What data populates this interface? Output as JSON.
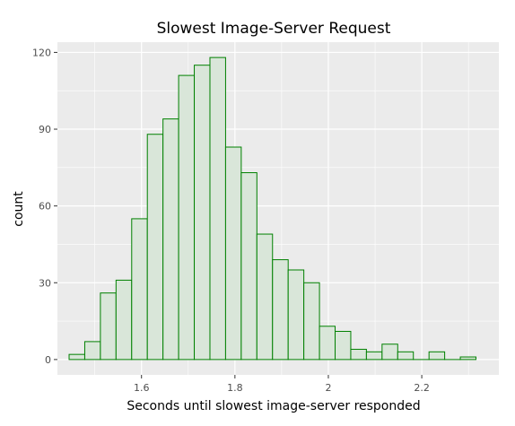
{
  "chart_data": {
    "type": "bar",
    "title": "Slowest Image-Server Request",
    "xlabel": "Seconds until slowest image-server responded",
    "ylabel": "count",
    "bin_width": 0.0335,
    "bin_starts": [
      1.445,
      1.4785,
      1.512,
      1.5455,
      1.579,
      1.6125,
      1.646,
      1.6795,
      1.713,
      1.7465,
      1.78,
      1.8135,
      1.847,
      1.8805,
      1.914,
      1.9475,
      1.981,
      2.0145,
      2.048,
      2.0815,
      2.115,
      2.1485,
      2.182,
      2.2155,
      2.249,
      2.2825,
      2.316
    ],
    "values": [
      2,
      7,
      26,
      31,
      55,
      88,
      94,
      111,
      115,
      118,
      83,
      73,
      49,
      39,
      35,
      30,
      13,
      11,
      4,
      3,
      6,
      3,
      0,
      3,
      0,
      1
    ],
    "xlim": [
      1.42,
      2.365
    ],
    "ylim": [
      -6.0,
      124.0
    ],
    "x_ticks": [
      1.6,
      1.8,
      2.0,
      2.2
    ],
    "x_tick_labels": [
      "1.6",
      "1.8",
      "2",
      "2.2"
    ],
    "y_ticks": [
      0,
      30,
      60,
      90,
      120
    ],
    "y_tick_labels": [
      "0",
      "30",
      "60",
      "90",
      "120"
    ],
    "grid": true,
    "fill_color": "#d9e6d9",
    "edge_color": "#008000",
    "panel_color": "#ebebeb",
    "grid_color": "#ffffff"
  }
}
